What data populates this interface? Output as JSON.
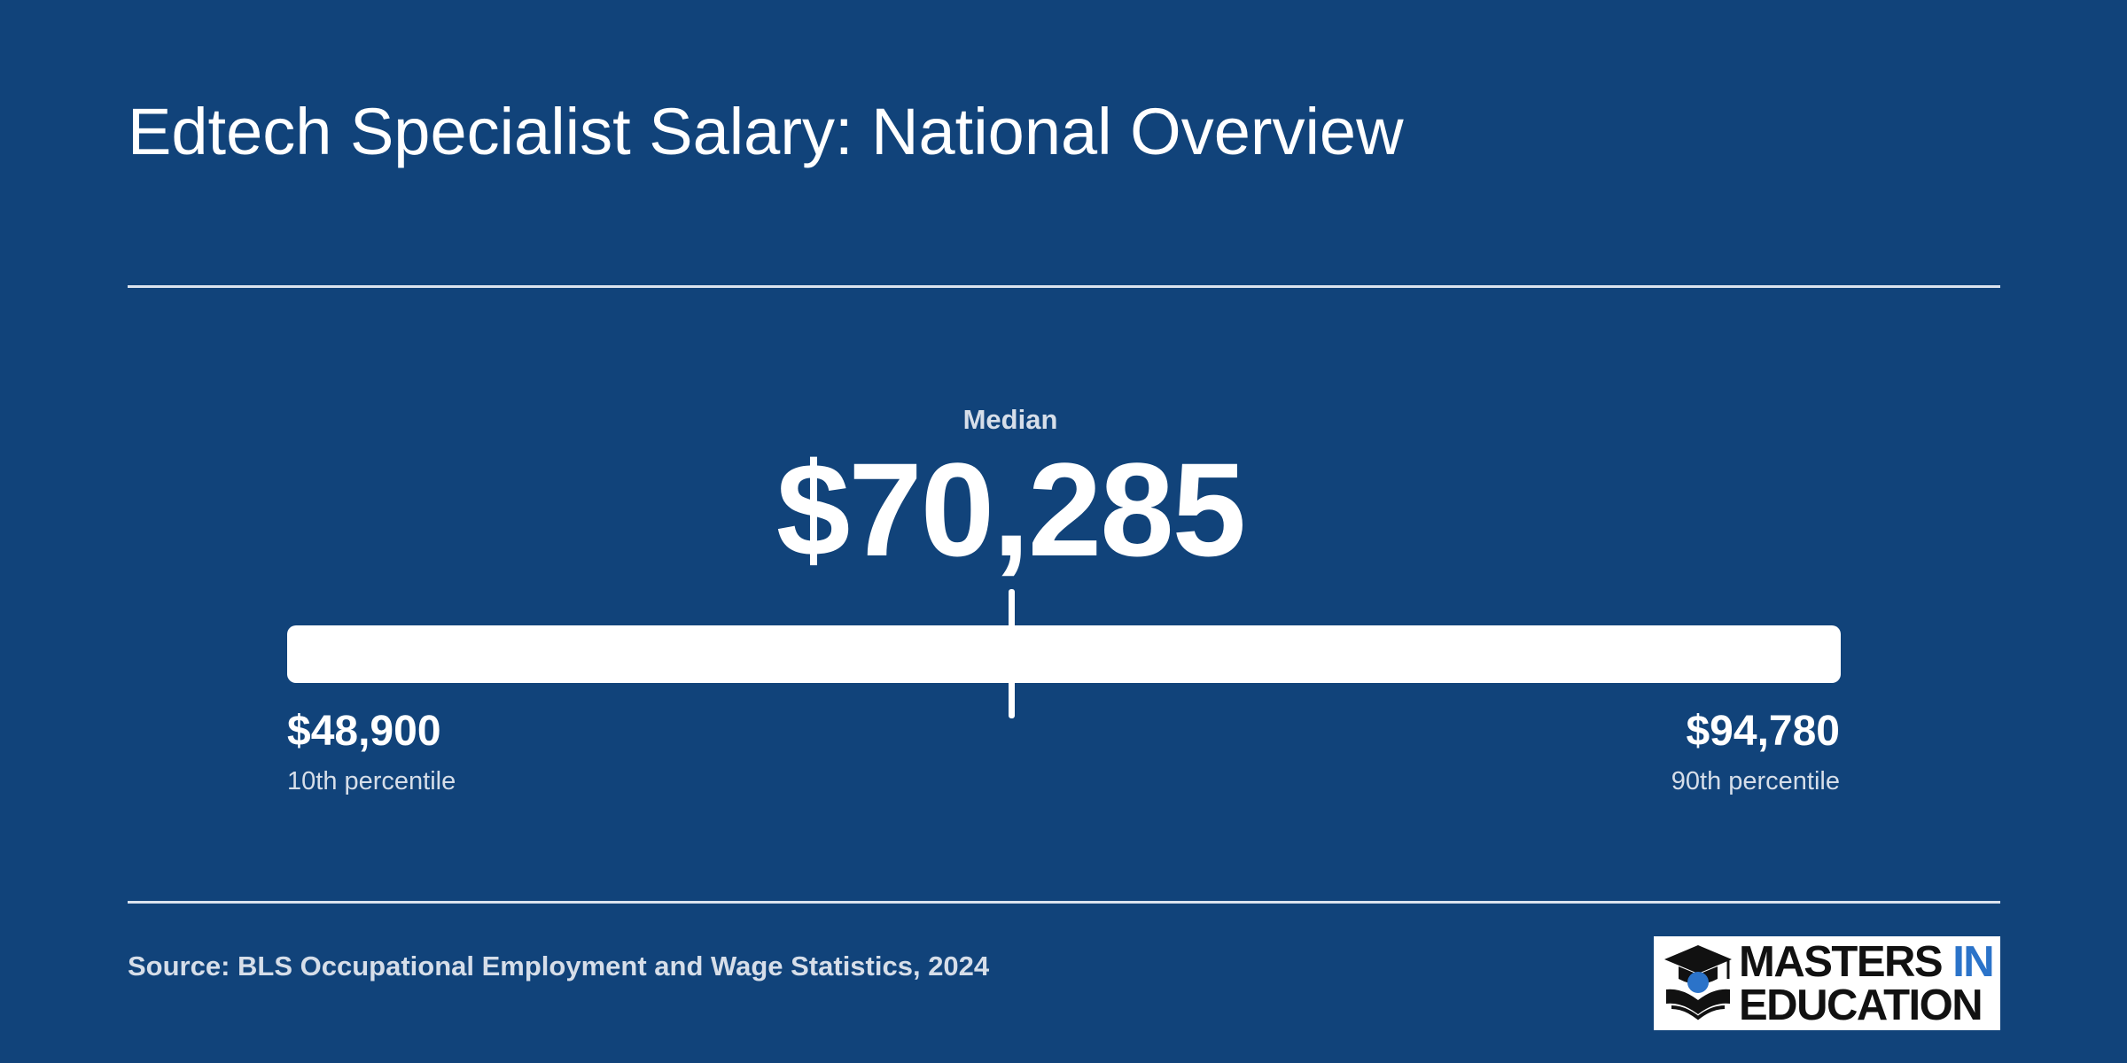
{
  "header": {
    "title": "Edtech Specialist Salary: National Overview"
  },
  "salary": {
    "median_label": "Median",
    "median_value": "$70,285",
    "low_value": "$48,900",
    "low_label": "10th percentile",
    "high_value": "$94,780",
    "high_label": "90th percentile",
    "range_min": 48900,
    "range_max": 94780,
    "median": 70285
  },
  "footer": {
    "source": "Source: BLS Occupational Employment and Wage Statistics, 2024",
    "logo": {
      "line1": "MASTERS ",
      "line1_accent": "IN",
      "line2": "EDUCATION",
      "icon": "graduation-cap-book-icon"
    }
  },
  "colors": {
    "background": "#11437a",
    "bar": "#ffffff",
    "logo_accent": "#2b73c9"
  }
}
